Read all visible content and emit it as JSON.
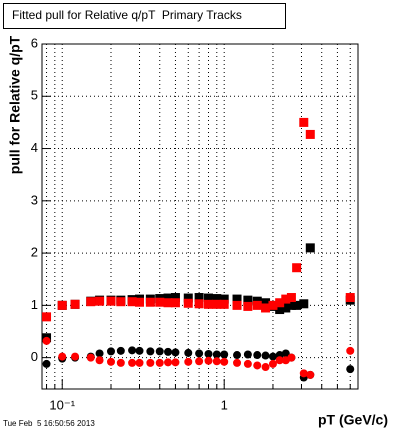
{
  "chart_data": {
    "type": "scatter",
    "title": "Fitted pull for Relative q/pT  Primary Tracks",
    "x_label": "pT (GeV/c)",
    "y_label": "pull for Relative q/pT",
    "timestamp": "Tue Feb  5 16:50:56 2013",
    "x_log": true,
    "grid": true,
    "xlim": [
      0.075,
      6.7
    ],
    "ylim": [
      -0.6,
      6
    ],
    "xticks": [
      {
        "value": 0.1,
        "label": "10⁻¹"
      },
      1
    ],
    "xgrid": [
      0.08,
      0.09,
      0.2,
      0.3,
      0.4,
      0.5,
      0.6,
      0.7,
      0.8,
      0.9,
      2,
      3,
      4,
      5,
      6
    ],
    "yticks": [
      0,
      1,
      2,
      3,
      4,
      5,
      6
    ],
    "x": [
      0.08,
      0.1,
      0.12,
      0.15,
      0.17,
      0.2,
      0.23,
      0.27,
      0.3,
      0.35,
      0.4,
      0.45,
      0.5,
      0.6,
      0.7,
      0.8,
      0.9,
      1.0,
      1.2,
      1.4,
      1.6,
      1.8,
      2.0,
      2.2,
      2.4,
      2.6,
      2.8,
      3.1,
      3.4,
      6.0
    ],
    "series": [
      {
        "color": "#000000",
        "marker": "square",
        "values": [
          0.38,
          1.0,
          1.02,
          1.08,
          1.1,
          1.1,
          1.1,
          1.11,
          1.12,
          1.12,
          1.13,
          1.14,
          1.15,
          1.14,
          1.15,
          1.14,
          1.13,
          1.12,
          1.12,
          1.1,
          1.08,
          1.05,
          0.98,
          0.92,
          0.95,
          1.0,
          1.0,
          1.03,
          2.1,
          1.1
        ]
      },
      {
        "color": "#ff0000",
        "marker": "square",
        "values": [
          0.78,
          1.0,
          1.02,
          1.07,
          1.08,
          1.08,
          1.07,
          1.07,
          1.06,
          1.06,
          1.06,
          1.05,
          1.05,
          1.04,
          1.03,
          1.02,
          1.02,
          1.02,
          1.0,
          0.98,
          1.0,
          0.95,
          1.0,
          1.05,
          1.12,
          1.15,
          1.72,
          4.5,
          4.27,
          1.15
        ]
      },
      {
        "color": "#000000",
        "marker": "circle",
        "values": [
          -0.12,
          -0.02,
          0.0,
          0.02,
          0.08,
          0.12,
          0.13,
          0.14,
          0.13,
          0.12,
          0.12,
          0.11,
          0.1,
          0.09,
          0.08,
          0.07,
          0.06,
          0.06,
          0.05,
          0.06,
          0.05,
          0.04,
          0.02,
          0.05,
          0.08,
          0.0,
          null,
          -0.38,
          -0.33,
          -0.22
        ]
      },
      {
        "color": "#ff0000",
        "marker": "circle",
        "values": [
          0.32,
          0.02,
          0.02,
          0.0,
          -0.05,
          -0.08,
          -0.1,
          -0.1,
          -0.1,
          -0.1,
          -0.1,
          -0.09,
          -0.09,
          -0.08,
          -0.07,
          -0.06,
          -0.07,
          -0.08,
          -0.1,
          -0.12,
          -0.15,
          -0.18,
          -0.12,
          -0.05,
          -0.05,
          0.0,
          null,
          -0.3,
          -0.33,
          0.13
        ]
      }
    ]
  }
}
